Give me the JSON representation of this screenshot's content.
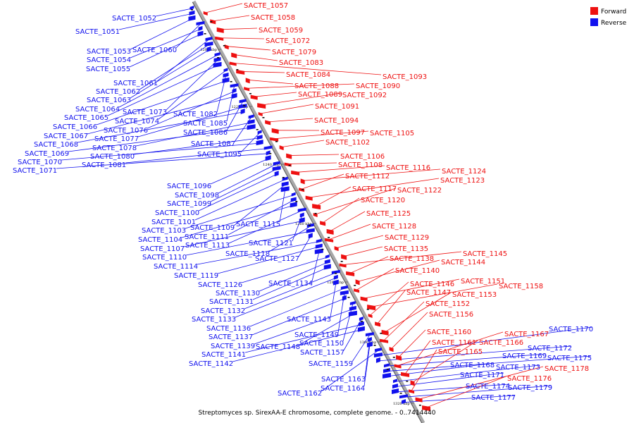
{
  "caption": "Streptomyces sp. SirexAA-E chromosome, complete genome. - 0..7414440",
  "legend": [
    {
      "label": "Forward",
      "color": "#ee1111"
    },
    {
      "label": "Reverse",
      "color": "#1111ee"
    }
  ],
  "axis_ticks": [
    "1200 kbp",
    "1220 kbp",
    "1240 kbp",
    "1260 kbp",
    "1280 kbp",
    "1300 kbp",
    "1320 kbp"
  ],
  "reverse_genes": [
    "SACTE_1052",
    "SACTE_1051",
    "SACTE_1053",
    "SACTE_1060",
    "SACTE_1054",
    "SACTE_1055",
    "SACTE_1061",
    "SACTE_1062",
    "SACTE_1063",
    "SACTE_1064",
    "SACTE_1073",
    "SACTE_1065",
    "SACTE_1074",
    "SACTE_1082",
    "SACTE_1066",
    "SACTE_1085",
    "SACTE_1076",
    "SACTE_1067",
    "SACTE_1086",
    "SACTE_1077",
    "SACTE_1068",
    "SACTE_1087",
    "SACTE_1078",
    "SACTE_1069",
    "SACTE_1095",
    "SACTE_1080",
    "SACTE_1070",
    "SACTE_1081",
    "SACTE_1071",
    "SACTE_1096",
    "SACTE_1098",
    "SACTE_1099",
    "SACTE_1100",
    "SACTE_1101",
    "SACTE_1109",
    "SACTE_1115",
    "SACTE_1103",
    "SACTE_1111",
    "SACTE_1104",
    "SACTE_1113",
    "SACTE_1121",
    "SACTE_1107",
    "SACTE_1118",
    "SACTE_1110",
    "SACTE_1127",
    "SACTE_1114",
    "SACTE_1119",
    "SACTE_1134",
    "SACTE_1126",
    "SACTE_1130",
    "SACTE_1131",
    "SACTE_1132",
    "SACTE_1133",
    "SACTE_1143",
    "SACTE_1136",
    "SACTE_1149",
    "SACTE_1137",
    "SACTE_1150",
    "SACTE_1139",
    "SACTE_1148",
    "SACTE_1157",
    "SACTE_1141",
    "SACTE_1142",
    "SACTE_1159",
    "SACTE_1163",
    "SACTE_1164",
    "SACTE_1162",
    "SACTE_1170",
    "SACTE_1172",
    "SACTE_1169",
    "SACTE_1175",
    "SACTE_1168",
    "SACTE_1173",
    "SACTE_1171",
    "SACTE_1174",
    "SACTE_1179",
    "SACTE_1177"
  ],
  "forward_genes": [
    "SACTE_1057",
    "SACTE_1058",
    "SACTE_1059",
    "SACTE_1072",
    "SACTE_1079",
    "SACTE_1083",
    "SACTE_1093",
    "SACTE_1084",
    "SACTE_1088",
    "SACTE_1090",
    "SACTE_1089",
    "SACTE_1092",
    "SACTE_1091",
    "SACTE_1094",
    "SACTE_1097",
    "SACTE_1105",
    "SACTE_1102",
    "SACTE_1106",
    "SACTE_1108",
    "SACTE_1116",
    "SACTE_1124",
    "SACTE_1112",
    "SACTE_1123",
    "SACTE_1117",
    "SACTE_1122",
    "SACTE_1120",
    "SACTE_1125",
    "SACTE_1128",
    "SACTE_1129",
    "SACTE_1135",
    "SACTE_1145",
    "SACTE_1138",
    "SACTE_1144",
    "SACTE_1140",
    "SACTE_1151",
    "SACTE_1158",
    "SACTE_1146",
    "SACTE_1147",
    "SACTE_1153",
    "SACTE_1152",
    "SACTE_1156",
    "SACTE_1160",
    "SACTE_1167",
    "SACTE_1161",
    "SACTE_1166",
    "SACTE_1165",
    "SACTE_1178",
    "SACTE_1176"
  ]
}
